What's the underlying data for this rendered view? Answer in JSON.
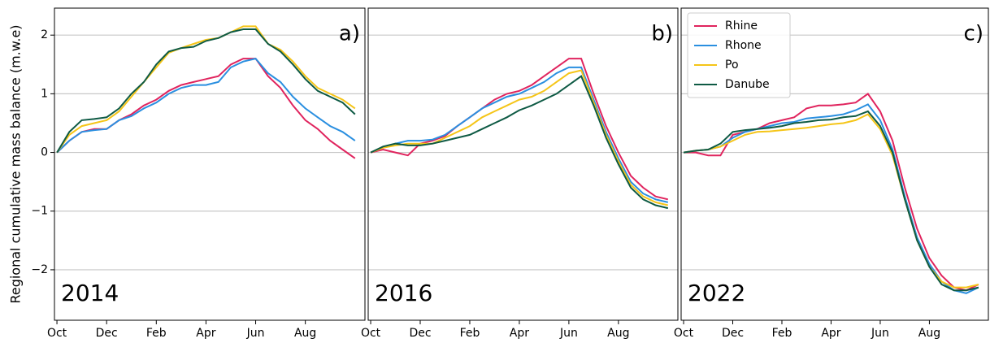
{
  "chart_data": [
    {
      "type": "line",
      "ylabel": "Regional cumulative mass balance (m.w.e)",
      "label": "2014",
      "annotation": "a)",
      "x": [
        0,
        0.5,
        1,
        1.5,
        2,
        2.5,
        3,
        3.5,
        4,
        4.5,
        5,
        5.5,
        6,
        6.5,
        7,
        7.5,
        8,
        8.5,
        9,
        9.5,
        10,
        10.5,
        11,
        11.5,
        12
      ],
      "xlim": [
        -0.1,
        12.4
      ],
      "ylim": [
        -2.86,
        2.46
      ],
      "xticks": [
        {
          "value": 0,
          "label": "Oct"
        },
        {
          "value": 2,
          "label": "Dec"
        },
        {
          "value": 4,
          "label": "Feb"
        },
        {
          "value": 6,
          "label": "Apr"
        },
        {
          "value": 8,
          "label": "Jun"
        },
        {
          "value": 10,
          "label": "Aug"
        }
      ],
      "yticks": [
        {
          "value": -2,
          "label": "−2"
        },
        {
          "value": -1,
          "label": "−1"
        },
        0,
        1,
        2
      ],
      "grid": true,
      "series": [
        {
          "name": "Rhine",
          "color": "#e0245e",
          "values": [
            0,
            0.2,
            0.35,
            0.4,
            0.4,
            0.55,
            0.65,
            0.8,
            0.9,
            1.05,
            1.15,
            1.2,
            1.25,
            1.3,
            1.5,
            1.6,
            1.6,
            1.3,
            1.1,
            0.8,
            0.55,
            0.4,
            0.2,
            0.05,
            -0.1
          ]
        },
        {
          "name": "Rhone",
          "color": "#2a8fe0",
          "values": [
            0,
            0.2,
            0.35,
            0.38,
            0.4,
            0.55,
            0.62,
            0.75,
            0.85,
            1.0,
            1.1,
            1.15,
            1.15,
            1.2,
            1.45,
            1.55,
            1.6,
            1.35,
            1.2,
            0.95,
            0.75,
            0.6,
            0.45,
            0.35,
            0.2
          ]
        },
        {
          "name": "Po",
          "color": "#f5c518",
          "values": [
            0,
            0.3,
            0.45,
            0.5,
            0.55,
            0.7,
            0.95,
            1.2,
            1.45,
            1.7,
            1.78,
            1.85,
            1.92,
            1.95,
            2.05,
            2.15,
            2.15,
            1.85,
            1.75,
            1.55,
            1.3,
            1.1,
            1.0,
            0.9,
            0.75
          ]
        },
        {
          "name": "Danube",
          "color": "#0e5a44",
          "values": [
            0,
            0.35,
            0.55,
            0.57,
            0.6,
            0.75,
            1.0,
            1.2,
            1.5,
            1.72,
            1.78,
            1.8,
            1.9,
            1.95,
            2.05,
            2.1,
            2.1,
            1.85,
            1.72,
            1.5,
            1.25,
            1.05,
            0.95,
            0.85,
            0.65
          ]
        }
      ]
    },
    {
      "type": "line",
      "label": "2016",
      "annotation": "b)",
      "x": [
        0,
        0.5,
        1,
        1.5,
        2,
        2.5,
        3,
        3.5,
        4,
        4.5,
        5,
        5.5,
        6,
        6.5,
        7,
        7.5,
        8,
        8.5,
        9,
        9.5,
        10,
        10.5,
        11,
        11.5,
        12
      ],
      "xlim": [
        -0.1,
        12.4
      ],
      "ylim": [
        -2.86,
        2.46
      ],
      "xticks": [
        {
          "value": 0,
          "label": "Oct"
        },
        {
          "value": 2,
          "label": "Dec"
        },
        {
          "value": 4,
          "label": "Feb"
        },
        {
          "value": 6,
          "label": "Apr"
        },
        {
          "value": 8,
          "label": "Jun"
        },
        {
          "value": 10,
          "label": "Aug"
        }
      ],
      "yticks": [
        {
          "value": -2,
          "label": "−2"
        },
        {
          "value": -1,
          "label": "−1"
        },
        0,
        1,
        2
      ],
      "grid": true,
      "series": [
        {
          "name": "Rhine",
          "color": "#e0245e",
          "values": [
            0,
            0.05,
            0.0,
            -0.05,
            0.15,
            0.2,
            0.28,
            0.45,
            0.6,
            0.75,
            0.9,
            1.0,
            1.05,
            1.15,
            1.3,
            1.45,
            1.6,
            1.6,
            1.0,
            0.45,
            0.0,
            -0.4,
            -0.6,
            -0.75,
            -0.8
          ]
        },
        {
          "name": "Rhone",
          "color": "#2a8fe0",
          "values": [
            0,
            0.08,
            0.15,
            0.2,
            0.2,
            0.22,
            0.3,
            0.45,
            0.6,
            0.75,
            0.85,
            0.95,
            1.0,
            1.1,
            1.2,
            1.35,
            1.45,
            1.45,
            0.9,
            0.35,
            -0.1,
            -0.5,
            -0.7,
            -0.8,
            -0.85
          ]
        },
        {
          "name": "Po",
          "color": "#f5c518",
          "values": [
            0,
            0.08,
            0.12,
            0.15,
            0.15,
            0.15,
            0.25,
            0.35,
            0.45,
            0.6,
            0.7,
            0.8,
            0.9,
            0.95,
            1.05,
            1.2,
            1.35,
            1.4,
            0.85,
            0.3,
            -0.15,
            -0.55,
            -0.75,
            -0.85,
            -0.9
          ]
        },
        {
          "name": "Danube",
          "color": "#0e5a44",
          "values": [
            0,
            0.1,
            0.15,
            0.12,
            0.12,
            0.15,
            0.2,
            0.25,
            0.3,
            0.4,
            0.5,
            0.6,
            0.72,
            0.8,
            0.9,
            1.0,
            1.15,
            1.3,
            0.8,
            0.25,
            -0.2,
            -0.6,
            -0.8,
            -0.9,
            -0.95
          ]
        }
      ]
    },
    {
      "type": "line",
      "label": "2022",
      "annotation": "c)",
      "legend": "upper left",
      "x": [
        0,
        0.5,
        1,
        1.5,
        2,
        2.5,
        3,
        3.5,
        4,
        4.5,
        5,
        5.5,
        6,
        6.5,
        7,
        7.5,
        8,
        8.5,
        9,
        9.5,
        10,
        10.5,
        11,
        11.5,
        12
      ],
      "xlim": [
        -0.1,
        12.4
      ],
      "ylim": [
        -2.86,
        2.46
      ],
      "xticks": [
        {
          "value": 0,
          "label": "Oct"
        },
        {
          "value": 2,
          "label": "Dec"
        },
        {
          "value": 4,
          "label": "Feb"
        },
        {
          "value": 6,
          "label": "Apr"
        },
        {
          "value": 8,
          "label": "Jun"
        },
        {
          "value": 10,
          "label": "Aug"
        }
      ],
      "yticks": [
        {
          "value": -2,
          "label": "−2"
        },
        {
          "value": -1,
          "label": "−1"
        },
        0,
        1,
        2
      ],
      "grid": true,
      "series": [
        {
          "name": "Rhine",
          "color": "#e0245e",
          "values": [
            0,
            0,
            -0.05,
            -0.05,
            0.3,
            0.35,
            0.4,
            0.5,
            0.55,
            0.6,
            0.75,
            0.8,
            0.8,
            0.82,
            0.85,
            1.0,
            0.7,
            0.2,
            -0.6,
            -1.3,
            -1.8,
            -2.1,
            -2.3,
            -2.35,
            -2.25
          ]
        },
        {
          "name": "Rhone",
          "color": "#2a8fe0",
          "values": [
            0,
            0.03,
            0.05,
            0.1,
            0.25,
            0.35,
            0.4,
            0.45,
            0.5,
            0.52,
            0.58,
            0.6,
            0.62,
            0.65,
            0.72,
            0.82,
            0.55,
            0.05,
            -0.75,
            -1.45,
            -1.9,
            -2.2,
            -2.35,
            -2.4,
            -2.3
          ]
        },
        {
          "name": "Po",
          "color": "#f5c518",
          "values": [
            0,
            0.03,
            0.05,
            0.1,
            0.2,
            0.3,
            0.35,
            0.36,
            0.38,
            0.4,
            0.42,
            0.45,
            0.48,
            0.5,
            0.55,
            0.65,
            0.4,
            -0.05,
            -0.8,
            -1.5,
            -1.95,
            -2.2,
            -2.3,
            -2.3,
            -2.25
          ]
        },
        {
          "name": "Danube",
          "color": "#0e5a44",
          "values": [
            0,
            0.03,
            0.05,
            0.15,
            0.35,
            0.38,
            0.4,
            0.42,
            0.45,
            0.5,
            0.52,
            0.55,
            0.56,
            0.6,
            0.62,
            0.7,
            0.45,
            0.0,
            -0.8,
            -1.5,
            -1.95,
            -2.25,
            -2.35,
            -2.35,
            -2.3
          ]
        }
      ]
    }
  ]
}
